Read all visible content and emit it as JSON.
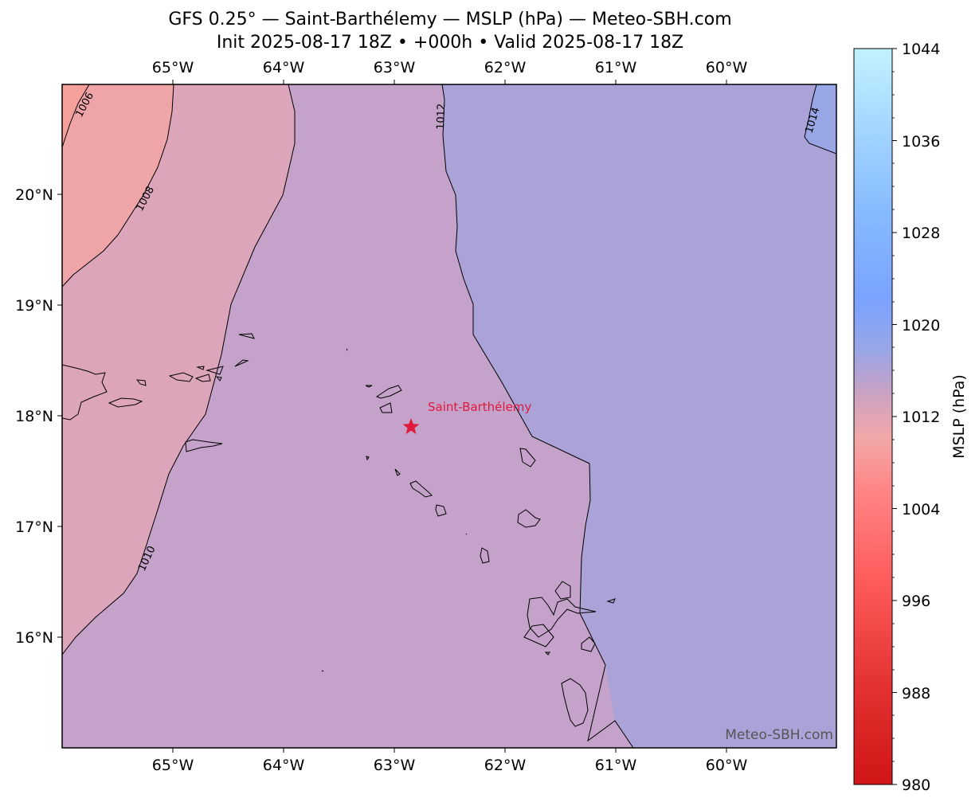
{
  "title": {
    "line1": "GFS 0.25° — Saint-Barthélemy — MSLP (hPa) — Meteo-SBH.com",
    "line2": "Init 2025-08-17 18Z • +000h • Valid 2025-08-17 18Z"
  },
  "map": {
    "lon_labels": [
      "65°W",
      "64°W",
      "63°W",
      "62°W",
      "61°W",
      "60°W"
    ],
    "lat_labels": [
      "20°N",
      "19°N",
      "18°N",
      "17°N",
      "16°N"
    ],
    "contour_labels": [
      "1006",
      "1008",
      "1010",
      "1012",
      "1014"
    ],
    "location": {
      "name": "Saint-Barthélemy",
      "marker": "star-icon",
      "color": "#e0183c"
    },
    "watermark": "Meteo-SBH.com",
    "fill_colors": {
      "lt1006": "#f2a3a3",
      "1006_1008": "#efa5a8",
      "1008_1010": "#dca5b9",
      "1010_1012": "#c4a2c9",
      "1012_1014": "#aba2d7",
      "gt1014": "#98a6e6"
    }
  },
  "colorbar": {
    "label": "MSLP (hPa)",
    "ticks": [
      "1044",
      "1036",
      "1028",
      "1020",
      "1012",
      "1004",
      "996",
      "988",
      "980"
    ],
    "min": 980,
    "max": 1044,
    "colors": [
      "#d21818",
      "#e03030",
      "#f04848",
      "#ff6464",
      "#ff8a8a",
      "#f2a8a8",
      "#c4a2c9",
      "#98a6e6",
      "#7fa6ff",
      "#8cc2ff",
      "#bff0ff"
    ]
  }
}
